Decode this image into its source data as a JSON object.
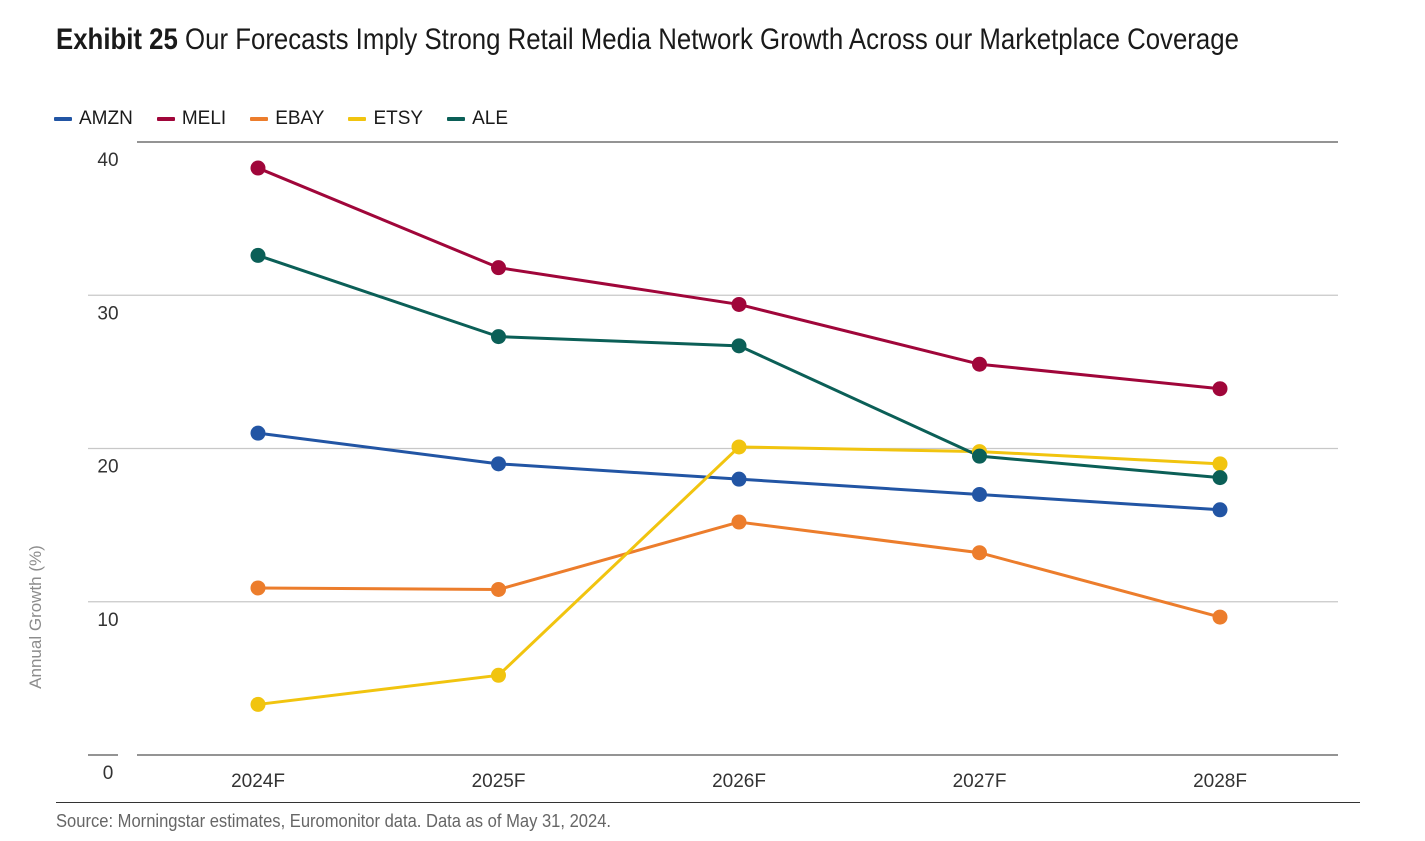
{
  "header": {
    "exhibit_label": "Exhibit 25",
    "title_text": "Our Forecasts Imply Strong Retail Media Network Growth Across our Marketplace Coverage"
  },
  "footer": {
    "source": "Source: Morningstar estimates, Euromonitor data. Data as of May 31, 2024."
  },
  "chart_data": {
    "type": "line",
    "title": "Our Forecasts Imply Strong Retail Media Network Growth Across our Marketplace Coverage",
    "xlabel": "",
    "ylabel": "Annual Growth (%)",
    "categories": [
      "2024F",
      "2025F",
      "2026F",
      "2027F",
      "2028F"
    ],
    "ylim": [
      0,
      40
    ],
    "yticks": [
      0,
      10,
      20,
      30,
      40
    ],
    "grid": true,
    "legend_position": "top-left",
    "series": [
      {
        "name": "AMZN",
        "color": "#2255a4",
        "values": [
          21.0,
          19.0,
          18.0,
          17.0,
          16.0
        ]
      },
      {
        "name": "MELI",
        "color": "#a0063a",
        "values": [
          38.3,
          31.8,
          29.4,
          25.5,
          23.9
        ]
      },
      {
        "name": "EBAY",
        "color": "#ec7d2c",
        "values": [
          10.9,
          10.8,
          15.2,
          13.2,
          9.0
        ]
      },
      {
        "name": "ETSY",
        "color": "#f1c40f",
        "values": [
          3.3,
          5.2,
          20.1,
          19.8,
          19.0
        ]
      },
      {
        "name": "ALE",
        "color": "#0b5f57",
        "values": [
          32.6,
          27.3,
          26.7,
          19.5,
          18.1
        ]
      }
    ]
  }
}
